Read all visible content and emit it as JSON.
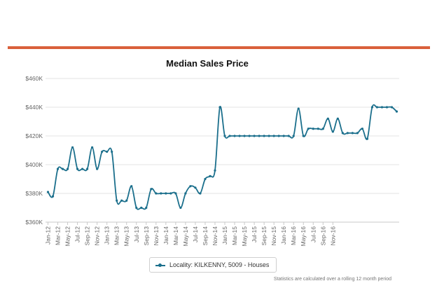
{
  "chart_data": {
    "type": "line",
    "title": "Median Sales Price",
    "xlabel": "",
    "ylabel": "",
    "ylim": [
      360000,
      460000
    ],
    "y_ticks": [
      360000,
      380000,
      400000,
      420000,
      440000,
      460000
    ],
    "y_tick_labels": [
      "$360K",
      "$380K",
      "$400K",
      "$420K",
      "$440K",
      "$460K"
    ],
    "x_tick_labels": [
      "Jan-12",
      "Mar-12",
      "May-12",
      "Jul-12",
      "Sep-12",
      "Nov-12",
      "Jan-13",
      "Mar-13",
      "May-13",
      "Jul-13",
      "Sep-13",
      "Nov-13",
      "Jan-14",
      "Mar-14",
      "May-14",
      "Jul-14",
      "Sep-14",
      "Nov-14",
      "Jan-15",
      "Mar-15",
      "May-15",
      "Jul-15",
      "Sep-15",
      "Nov-15",
      "Jan-16",
      "Mar-16",
      "May-16",
      "Jul-16",
      "Sep-16",
      "Nov-16"
    ],
    "series": [
      {
        "name": "Locality: KILKENNY, 5009 - Houses",
        "color": "#1b6f8c",
        "values": [
          381000,
          378000,
          397000,
          397000,
          397000,
          412000,
          397000,
          397000,
          397000,
          412000,
          397000,
          409000,
          409000,
          409000,
          375000,
          375000,
          375000,
          385000,
          370000,
          370000,
          370000,
          383000,
          380000,
          380000,
          380000,
          380000,
          380000,
          370000,
          380000,
          385000,
          384000,
          380000,
          390000,
          392000,
          396000,
          440000,
          420000,
          420000,
          420000,
          420000,
          420000,
          420000,
          420000,
          420000,
          420000,
          420000,
          420000,
          420000,
          420000,
          420000,
          420000,
          439000,
          420000,
          425000,
          425000,
          425000,
          425000,
          432000,
          423000,
          432000,
          422000,
          422000,
          422000,
          422000,
          425000,
          418000,
          440000,
          440000,
          440000,
          440000,
          440000,
          437000
        ]
      }
    ]
  },
  "legend": {
    "label": "Locality: KILKENNY, 5009 - Houses"
  },
  "footnote": "Statistics are calculated over a rolling 12 month period"
}
